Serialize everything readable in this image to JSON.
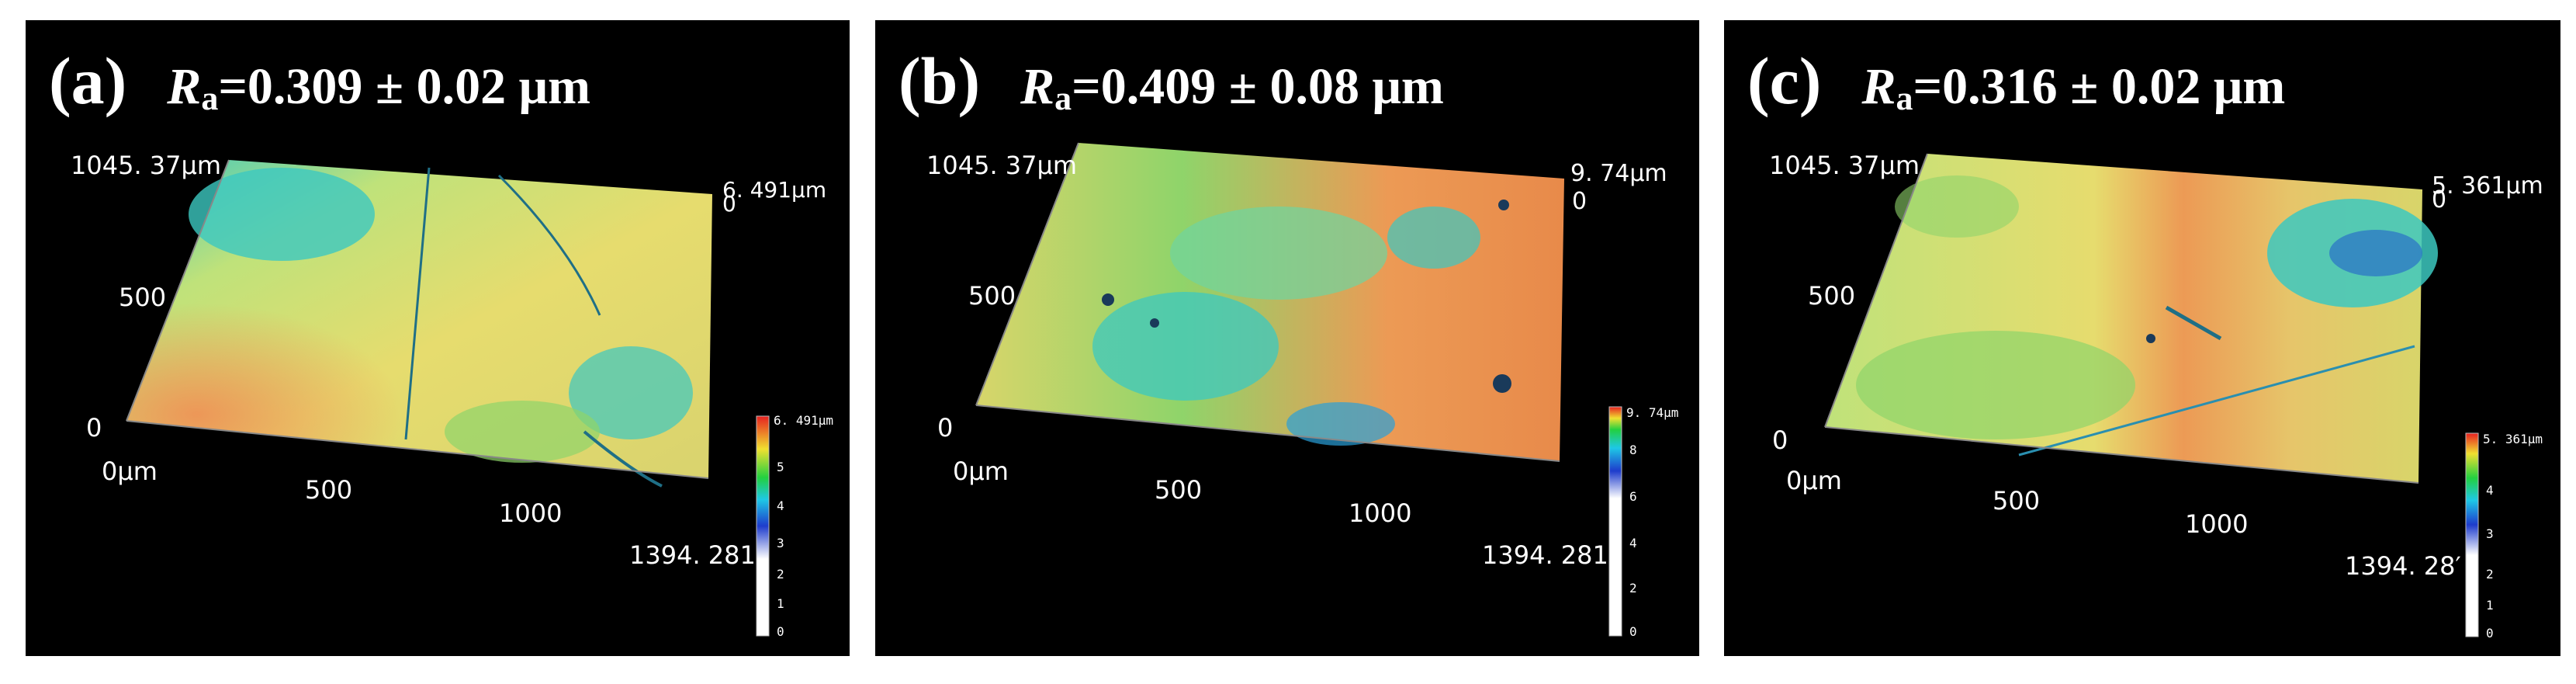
{
  "panels": [
    {
      "label": "(a)",
      "ra_prefix": "R",
      "ra_sub": "a",
      "ra_value": "=0.309 ± 0.02 μm",
      "y_max": "1045. 37μm",
      "y_mid": "500",
      "y_zero": "0",
      "x_zero": "0μm",
      "x_mid": "500",
      "x_1000": "1000",
      "x_max": "1394. 281",
      "z_max": "6. 491μm",
      "z_zero": "0",
      "colorbar_max": "6. 491μm",
      "colorbar_ticks": [
        "5",
        "4",
        "3",
        "2",
        "1",
        "0"
      ]
    },
    {
      "label": "(b)",
      "ra_prefix": "R",
      "ra_sub": "a",
      "ra_value": "=0.409 ± 0.08 μm",
      "y_max": "1045. 37μm",
      "y_mid": "500",
      "y_zero": "0",
      "x_zero": "0μm",
      "x_mid": "500",
      "x_1000": "1000",
      "x_max": "1394. 281",
      "z_max": "9. 74μm",
      "z_zero": "0",
      "colorbar_max": "9. 74μm",
      "colorbar_ticks": [
        "8",
        "6",
        "4",
        "2",
        "0"
      ]
    },
    {
      "label": "(c)",
      "ra_prefix": "R",
      "ra_sub": "a",
      "ra_value": "=0.316 ± 0.02 μm",
      "y_max": "1045. 37μm",
      "y_mid": "500",
      "y_zero": "0",
      "x_zero": "0μm",
      "x_mid": "500",
      "x_1000": "1000",
      "x_max": "1394. 28′",
      "z_max": "5. 361μm",
      "z_zero": "0",
      "colorbar_max": "5. 361μm",
      "colorbar_ticks": [
        "4",
        "3",
        "2",
        "1",
        "0"
      ]
    }
  ],
  "colors": {
    "panel_background": "#000000",
    "surface_yellow": "#e6dc6e",
    "surface_orange": "#ec9a55",
    "surface_cyan": "#3cc8c0",
    "surface_green": "#8fd46a"
  }
}
